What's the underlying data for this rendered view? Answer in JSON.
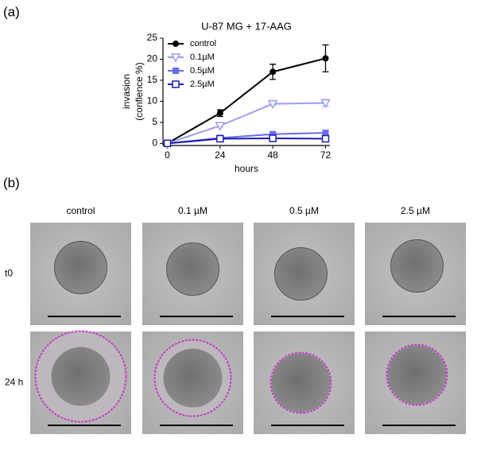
{
  "panel_labels": [
    "(a)",
    "(b)"
  ],
  "chart_data": {
    "type": "line",
    "title": "U-87 MG + 17-AAG",
    "xlabel": "hours",
    "ylabel": [
      "invasion",
      "(conflence %)"
    ],
    "x": [
      0,
      24,
      48,
      72
    ],
    "series": [
      {
        "name": "control",
        "color": "#000000",
        "marker": "circle",
        "values": [
          0,
          7.2,
          17,
          20.2
        ],
        "errors": [
          0.3,
          0.8,
          1.8,
          3.2
        ]
      },
      {
        "name": "0.1µM",
        "color": "#9c9cf5",
        "marker": "triangle-down-open",
        "values": [
          0,
          4.2,
          9.4,
          9.6
        ],
        "errors": [
          0.2,
          0.3,
          0.3,
          0.8
        ]
      },
      {
        "name": "0.5µM",
        "color": "#6b6bf0",
        "marker": "square",
        "values": [
          0,
          1.3,
          2.2,
          2.5
        ],
        "errors": [
          0.1,
          0.2,
          0.3,
          0.4
        ]
      },
      {
        "name": "2.5µM",
        "color": "#1c1cb0",
        "marker": "square-open",
        "values": [
          0,
          1.1,
          1.2,
          1.1
        ],
        "errors": [
          0.1,
          0.2,
          0.2,
          0.3
        ]
      }
    ],
    "xlim": [
      -2,
      74
    ],
    "ylim": [
      -0.5,
      25
    ],
    "xticks": [
      0,
      24,
      48,
      72
    ],
    "yticks": [
      0,
      5,
      10,
      15,
      20,
      25
    ],
    "legend": "upper left"
  },
  "panel_b": {
    "columns": [
      "control",
      "0.1 µM",
      "0.5 µM",
      "2.5 µM"
    ],
    "rows": [
      "t0",
      "24 h"
    ]
  }
}
